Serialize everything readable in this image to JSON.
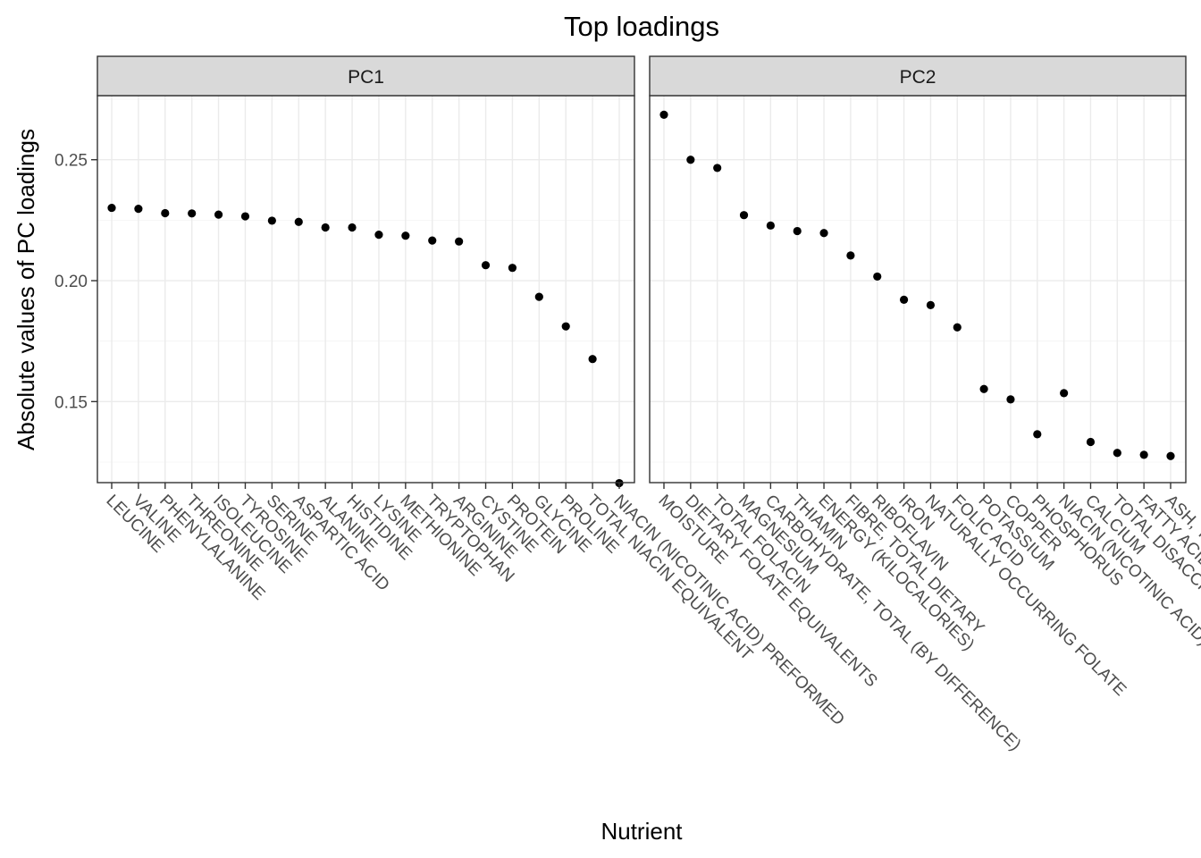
{
  "chart_data": {
    "type": "scatter",
    "title": "Top loadings",
    "xlabel": "Nutrient",
    "ylabel": "Absolute values of PC loadings",
    "ylim": [
      0.1165,
      0.2765
    ],
    "yticks": [
      0.15,
      0.2,
      0.25
    ],
    "ytick_labels": [
      "0.15",
      "0.20",
      "0.25"
    ],
    "grid": true,
    "facets": [
      {
        "label": "PC1",
        "categories": [
          "LEUCINE",
          "VALINE",
          "PHENYLALANINE",
          "THREONINE",
          "ISOLEUCINE",
          "TYROSINE",
          "SERINE",
          "ASPARTIC ACID",
          "ALANINE",
          "HISTIDINE",
          "LYSINE",
          "METHIONINE",
          "TRYPTOPHAN",
          "ARGININE",
          "CYSTINE",
          "PROTEIN",
          "GLYCINE",
          "PROLINE",
          "TOTAL NIACIN EQUIVALENT",
          "NIACIN (NICOTINIC ACID) PREFORMED"
        ],
        "values": [
          0.2301,
          0.2297,
          0.2279,
          0.2278,
          0.2273,
          0.2266,
          0.2248,
          0.2243,
          0.222,
          0.222,
          0.219,
          0.2186,
          0.2166,
          0.2162,
          0.2064,
          0.2053,
          0.1933,
          0.1811,
          0.1676,
          0.1163
        ]
      },
      {
        "label": "PC2",
        "categories": [
          "MOISTURE",
          "DIETARY FOLATE EQUIVALENTS",
          "TOTAL FOLACIN",
          "MAGNESIUM",
          "CARBOHYDRATE, TOTAL (BY DIFFERENCE)",
          "THIAMIN",
          "ENERGY (KILOCALORIES)",
          "FIBRE, TOTAL DIETARY",
          "RIBOFLAVIN",
          "IRON",
          "NATURALLY OCCURRING FOLATE",
          "FOLIC ACID",
          "POTASSIUM",
          "COPPER",
          "PHOSPHORUS",
          "NIACIN (NICOTINIC ACID) PREFORMED",
          "CALCIUM",
          "TOTAL DISACCHARIDES",
          "FATTY ACIDS, SATURATED, TOTAL",
          "ASH, TOTAL"
        ],
        "values": [
          0.2686,
          0.25,
          0.2466,
          0.2271,
          0.2228,
          0.2205,
          0.2197,
          0.2104,
          0.2017,
          0.1921,
          0.1899,
          0.1807,
          0.1552,
          0.1509,
          0.1365,
          0.1535,
          0.1333,
          0.1288,
          0.128,
          0.1275
        ]
      }
    ]
  }
}
